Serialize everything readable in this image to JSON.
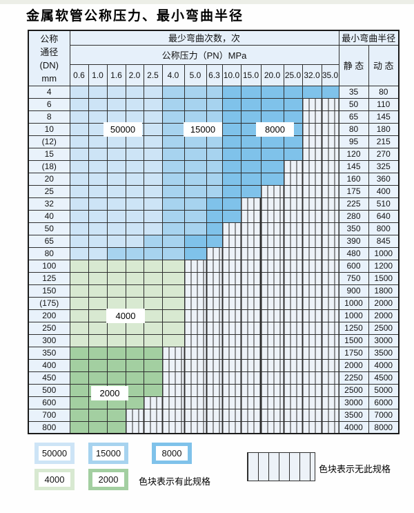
{
  "title": "金属软管公称压力、最小弯曲半径",
  "colors": {
    "blue_50000": "#cde4f6",
    "blue_15000": "#a7d3ef",
    "blue_8000": "#7fc2ea",
    "green_4000": "#d8e9d1",
    "green_2000": "#a3cfa1",
    "striped_bg": "#edf2f8",
    "header_bg": "#e6f0fa",
    "grid_line": "#2e2e2e"
  },
  "table": {
    "header": {
      "dn_lines": [
        "公称",
        "通径",
        "(DN)",
        "mm"
      ],
      "bend_cycles_label": "最少弯曲次数，次",
      "pressure_label": "公称压力（PN）MPa",
      "pressure_columns": [
        "0.6",
        "1.0",
        "1.6",
        "2.0",
        "2.5",
        "4.0",
        "5.0",
        "6.3",
        "10.0",
        "15.0",
        "20.0",
        "25.0",
        "32.0",
        "35.0"
      ],
      "bend_radius_label": "最小弯曲半径",
      "static_label": "静 态",
      "dynamic_label": "动 态"
    },
    "cell_legend_codes": {
      "b1": "50000次",
      "b2": "15000次",
      "b3": "8000次",
      "g1": "4000次",
      "g2": "2000次",
      "x": "无此规格"
    },
    "rows": [
      {
        "dn": "4",
        "zones": [
          [
            "b1",
            5
          ],
          [
            "b2",
            3
          ],
          [
            "b3",
            6
          ]
        ],
        "static": "35",
        "dynamic": "80"
      },
      {
        "dn": "6",
        "zones": [
          [
            "b1",
            5
          ],
          [
            "b2",
            3
          ],
          [
            "b3",
            4
          ],
          [
            "x",
            2
          ]
        ],
        "static": "50",
        "dynamic": "110"
      },
      {
        "dn": "8",
        "zones": [
          [
            "b1",
            5
          ],
          [
            "b2",
            3
          ],
          [
            "b3",
            4
          ],
          [
            "x",
            2
          ]
        ],
        "static": "65",
        "dynamic": "145"
      },
      {
        "dn": "10",
        "zones": [
          [
            "b1",
            5
          ],
          [
            "b2",
            3
          ],
          [
            "b3",
            4
          ],
          [
            "x",
            2
          ]
        ],
        "static": "80",
        "dynamic": "180"
      },
      {
        "dn": "(12)",
        "zones": [
          [
            "b1",
            5
          ],
          [
            "b2",
            3
          ],
          [
            "b3",
            4
          ],
          [
            "x",
            2
          ]
        ],
        "static": "95",
        "dynamic": "215"
      },
      {
        "dn": "15",
        "zones": [
          [
            "b1",
            5
          ],
          [
            "b2",
            3
          ],
          [
            "b3",
            4
          ],
          [
            "x",
            2
          ]
        ],
        "static": "120",
        "dynamic": "270"
      },
      {
        "dn": "(18)",
        "zones": [
          [
            "b1",
            5
          ],
          [
            "b2",
            3
          ],
          [
            "b3",
            3
          ],
          [
            "x",
            3
          ]
        ],
        "static": "145",
        "dynamic": "325"
      },
      {
        "dn": "20",
        "zones": [
          [
            "b1",
            5
          ],
          [
            "b2",
            3
          ],
          [
            "b3",
            3
          ],
          [
            "x",
            3
          ]
        ],
        "static": "160",
        "dynamic": "360"
      },
      {
        "dn": "25",
        "zones": [
          [
            "b1",
            5
          ],
          [
            "b2",
            3
          ],
          [
            "b3",
            2
          ],
          [
            "x",
            4
          ]
        ],
        "static": "175",
        "dynamic": "400"
      },
      {
        "dn": "32",
        "zones": [
          [
            "b1",
            5
          ],
          [
            "b2",
            2
          ],
          [
            "b3",
            2
          ],
          [
            "x",
            5
          ]
        ],
        "static": "225",
        "dynamic": "510"
      },
      {
        "dn": "40",
        "zones": [
          [
            "b1",
            5
          ],
          [
            "b2",
            2
          ],
          [
            "b3",
            2
          ],
          [
            "x",
            5
          ]
        ],
        "static": "280",
        "dynamic": "640"
      },
      {
        "dn": "50",
        "zones": [
          [
            "b1",
            5
          ],
          [
            "b2",
            2
          ],
          [
            "b3",
            1
          ],
          [
            "x",
            6
          ]
        ],
        "static": "350",
        "dynamic": "800"
      },
      {
        "dn": "65",
        "zones": [
          [
            "b1",
            4
          ],
          [
            "b2",
            2
          ],
          [
            "b3",
            2
          ],
          [
            "x",
            6
          ]
        ],
        "static": "390",
        "dynamic": "845"
      },
      {
        "dn": "80",
        "zones": [
          [
            "b1",
            2
          ],
          [
            "b2",
            4
          ],
          [
            "b3",
            1
          ],
          [
            "x",
            7
          ]
        ],
        "static": "480",
        "dynamic": "1000"
      },
      {
        "dn": "100",
        "zones": [
          [
            "g1",
            6
          ],
          [
            "x",
            8
          ]
        ],
        "static": "600",
        "dynamic": "1200"
      },
      {
        "dn": "125",
        "zones": [
          [
            "g1",
            6
          ],
          [
            "x",
            8
          ]
        ],
        "static": "750",
        "dynamic": "1500"
      },
      {
        "dn": "150",
        "zones": [
          [
            "g1",
            6
          ],
          [
            "x",
            8
          ]
        ],
        "static": "900",
        "dynamic": "1800"
      },
      {
        "dn": "(175)",
        "zones": [
          [
            "g1",
            6
          ],
          [
            "x",
            8
          ]
        ],
        "static": "1000",
        "dynamic": "2000"
      },
      {
        "dn": "200",
        "zones": [
          [
            "g1",
            6
          ],
          [
            "x",
            8
          ]
        ],
        "static": "1000",
        "dynamic": "2000"
      },
      {
        "dn": "250",
        "zones": [
          [
            "g1",
            6
          ],
          [
            "x",
            8
          ]
        ],
        "static": "1250",
        "dynamic": "2500"
      },
      {
        "dn": "300",
        "zones": [
          [
            "g1",
            6
          ],
          [
            "x",
            8
          ]
        ],
        "static": "1500",
        "dynamic": "3000"
      },
      {
        "dn": "350",
        "zones": [
          [
            "g2",
            5
          ],
          [
            "x",
            9
          ]
        ],
        "static": "1750",
        "dynamic": "3500"
      },
      {
        "dn": "400",
        "zones": [
          [
            "g2",
            5
          ],
          [
            "x",
            9
          ]
        ],
        "static": "2000",
        "dynamic": "4000"
      },
      {
        "dn": "450",
        "zones": [
          [
            "g2",
            5
          ],
          [
            "x",
            9
          ]
        ],
        "static": "2250",
        "dynamic": "4500"
      },
      {
        "dn": "500",
        "zones": [
          [
            "g2",
            5
          ],
          [
            "x",
            9
          ]
        ],
        "static": "2500",
        "dynamic": "5000"
      },
      {
        "dn": "600",
        "zones": [
          [
            "g2",
            4
          ],
          [
            "x",
            10
          ]
        ],
        "static": "3000",
        "dynamic": "6000"
      },
      {
        "dn": "700",
        "zones": [
          [
            "g2",
            3
          ],
          [
            "x",
            11
          ]
        ],
        "static": "3500",
        "dynamic": "7000"
      },
      {
        "dn": "800",
        "zones": [
          [
            "g2",
            3
          ],
          [
            "x",
            11
          ]
        ],
        "static": "4000",
        "dynamic": "8000"
      }
    ]
  },
  "overlay_labels": {
    "l50000": "50000",
    "l15000": "15000",
    "l8000": "8000",
    "l4000": "4000",
    "l2000": "2000"
  },
  "legend": {
    "swatch_50000": "50000",
    "swatch_15000": "15000",
    "swatch_8000": "8000",
    "swatch_4000": "4000",
    "swatch_2000": "2000",
    "has_spec_text": "色块表示有此规格",
    "no_spec_text": "色块表示无此规格"
  }
}
